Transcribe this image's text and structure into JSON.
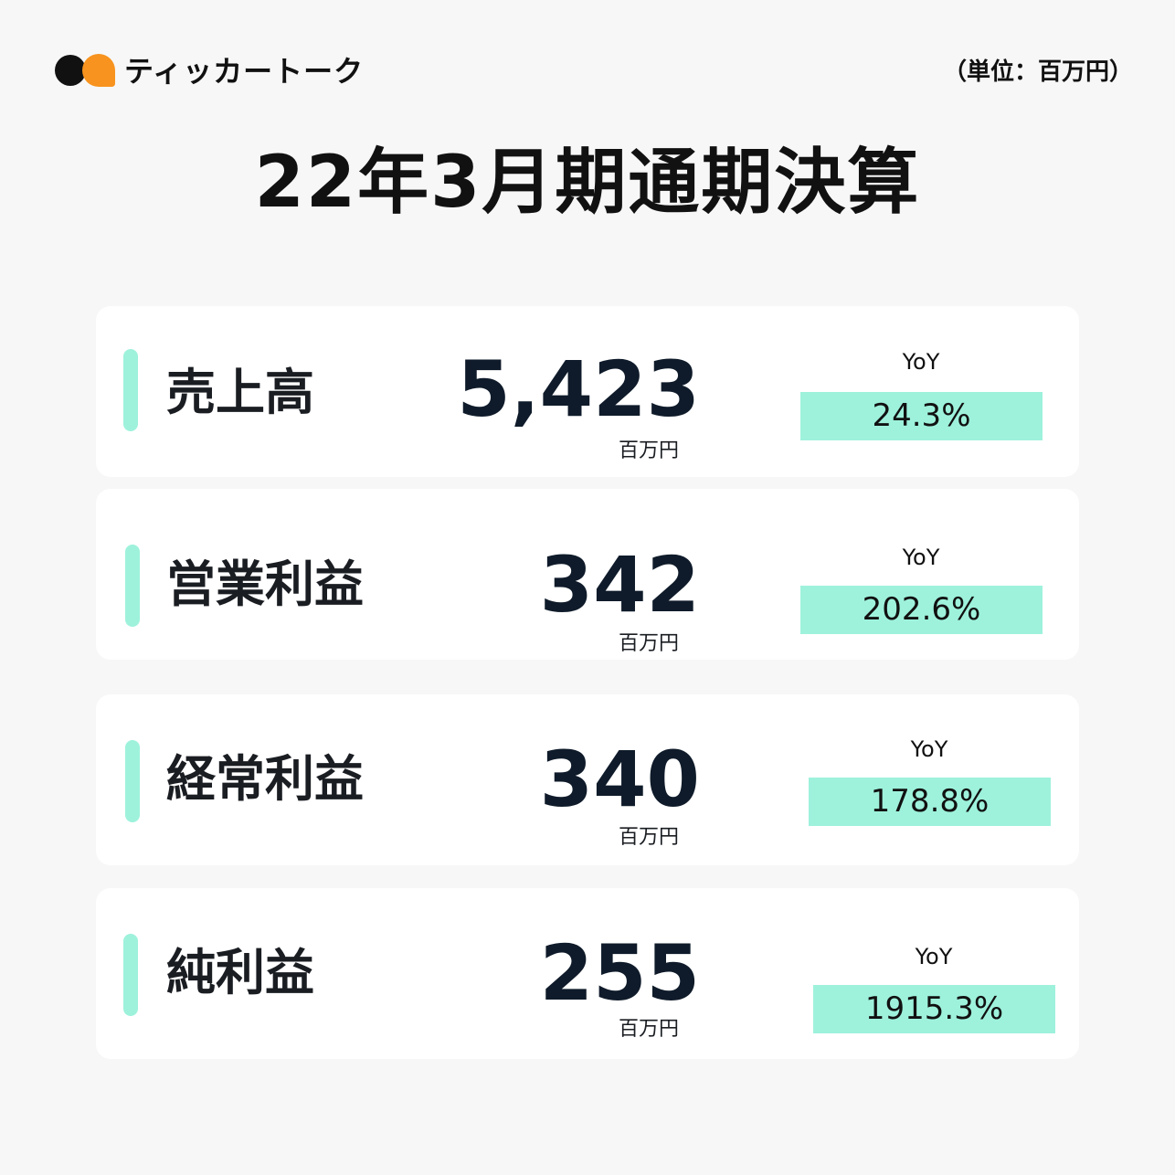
{
  "header": {
    "brand_name": "ティッカートーク",
    "unit_note": "（単位：百万円）"
  },
  "title": "22年3月期通期決算",
  "metrics": [
    {
      "label": "売上高",
      "value": "5,423",
      "unit": "百万円",
      "yoy_label": "YoY",
      "yoy": "24.3%"
    },
    {
      "label": "営業利益",
      "value": "342",
      "unit": "百万円",
      "yoy_label": "YoY",
      "yoy": "202.6%"
    },
    {
      "label": "経常利益",
      "value": "340",
      "unit": "百万円",
      "yoy_label": "YoY",
      "yoy": "178.8%"
    },
    {
      "label": "純利益",
      "value": "255",
      "unit": "百万円",
      "yoy_label": "YoY",
      "yoy": "1915.3%"
    }
  ],
  "colors": {
    "accent_mint": "#9ef2dc",
    "logo_orange": "#f7931e",
    "logo_black": "#111111",
    "background": "#f7f7f7",
    "card": "#ffffff"
  }
}
